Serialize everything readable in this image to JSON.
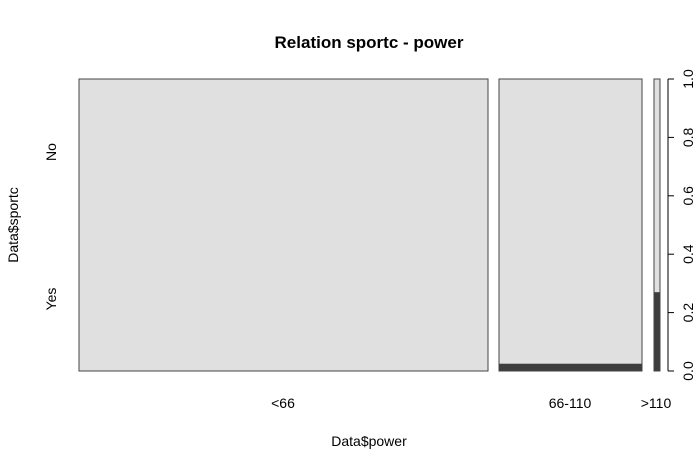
{
  "chart_data": {
    "type": "spineplot",
    "title": "Relation sportc - power",
    "xlabel": "Data$power",
    "ylabel": "Data$sportc",
    "categories": [
      "<66",
      "66-110",
      ">110"
    ],
    "column_widths": [
      0.72,
      0.25,
      0.01
    ],
    "levels": [
      "Yes",
      "No"
    ],
    "series": [
      {
        "name": "Yes",
        "values": [
          0.0,
          0.025,
          0.27
        ]
      },
      {
        "name": "No",
        "values": [
          1.0,
          0.975,
          0.73
        ]
      }
    ],
    "y_axis_right": {
      "ticks": [
        "0.0",
        "0.2",
        "0.4",
        "0.6",
        "0.8",
        "1.0"
      ],
      "ylim": [
        0,
        1
      ]
    },
    "colors": {
      "Yes": "#3d3d3d",
      "No": "#e0e0e0",
      "border": "#444444"
    }
  }
}
